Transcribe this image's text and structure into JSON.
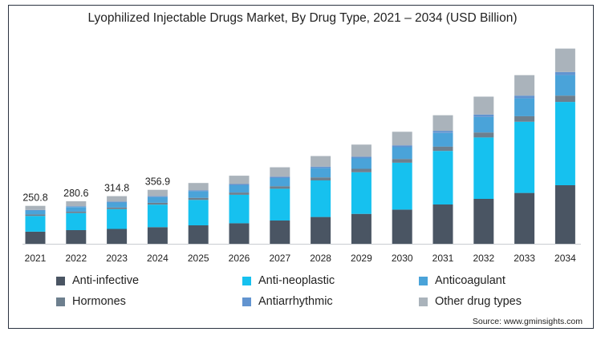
{
  "chart_data": {
    "type": "bar",
    "stacked": true,
    "title": "Lyophilized Injectable Drugs Market, By Drug Type, 2021 – 2034 (USD Billion)",
    "categories": [
      "2021",
      "2022",
      "2023",
      "2024",
      "2025",
      "2026",
      "2027",
      "2028",
      "2029",
      "2030",
      "2031",
      "2032",
      "2033",
      "2034"
    ],
    "totals_labels": [
      "250.8",
      "280.6",
      "314.8",
      "356.9",
      "",
      "",
      "",
      "",
      "",
      "",
      "",
      "",
      "",
      ""
    ],
    "series": [
      {
        "name": "Anti-infective",
        "color": "#4a5563",
        "values": [
          80,
          90,
          98,
          110,
          122,
          136,
          154,
          177,
          198,
          226,
          260,
          297,
          336,
          387
        ]
      },
      {
        "name": "Anti-neoplastic",
        "color": "#16c1ef",
        "values": [
          104,
          113,
          131,
          149,
          168,
          188,
          210,
          242,
          275,
          310,
          354,
          406,
          471,
          551
        ]
      },
      {
        "name": "Hormones",
        "color": "#6d7f8e",
        "values": [
          10,
          10,
          11,
          12,
          14,
          15,
          17,
          20,
          23,
          25,
          29,
          33,
          37,
          42
        ]
      },
      {
        "name": "Anticoagulant",
        "color": "#4aa3d9",
        "values": [
          26,
          30,
          33,
          38,
          43,
          48,
          54,
          61,
          69,
          78,
          90,
          103,
          118,
          136
        ]
      },
      {
        "name": "Antiarrhythmic",
        "color": "#6294d0",
        "values": [
          4,
          5,
          6,
          6,
          7,
          8,
          9,
          10,
          11,
          12,
          14,
          16,
          18,
          20
        ]
      },
      {
        "name": "Other drug types",
        "color": "#aab3bb",
        "values": [
          27,
          33,
          36,
          42,
          48,
          55,
          62,
          70,
          80,
          90,
          103,
          118,
          135,
          155
        ]
      }
    ],
    "ylim": [
      0,
      1400
    ],
    "legend_order": [
      "Anti-infective",
      "Anti-neoplastic",
      "Anticoagulant",
      "Hormones",
      "Antiarrhythmic",
      "Other drug types"
    ],
    "legend_position": "bottom",
    "grid": false
  },
  "source": "Source: www.gminsights.com"
}
